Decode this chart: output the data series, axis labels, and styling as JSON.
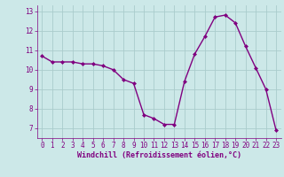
{
  "x": [
    0,
    1,
    2,
    3,
    4,
    5,
    6,
    7,
    8,
    9,
    10,
    11,
    12,
    13,
    14,
    15,
    16,
    17,
    18,
    19,
    20,
    21,
    22,
    23
  ],
  "y": [
    10.7,
    10.4,
    10.4,
    10.4,
    10.3,
    10.3,
    10.2,
    10.0,
    9.5,
    9.3,
    7.7,
    7.5,
    7.2,
    7.2,
    9.4,
    10.8,
    11.7,
    12.7,
    12.8,
    12.4,
    11.2,
    10.1,
    9.0,
    6.9
  ],
  "line_color": "#800080",
  "marker": "D",
  "marker_size": 2.0,
  "bg_color": "#cce8e8",
  "grid_color": "#aacccc",
  "xlabel": "Windchill (Refroidissement éolien,°C)",
  "xlabel_color": "#800080",
  "tick_color": "#800080",
  "ylabel_ticks": [
    7,
    8,
    9,
    10,
    11,
    12,
    13
  ],
  "xlim": [
    -0.5,
    23.5
  ],
  "ylim": [
    6.5,
    13.3
  ],
  "font_size_xlabel": 6.0,
  "font_size_ticks": 5.5,
  "line_width": 1.0
}
